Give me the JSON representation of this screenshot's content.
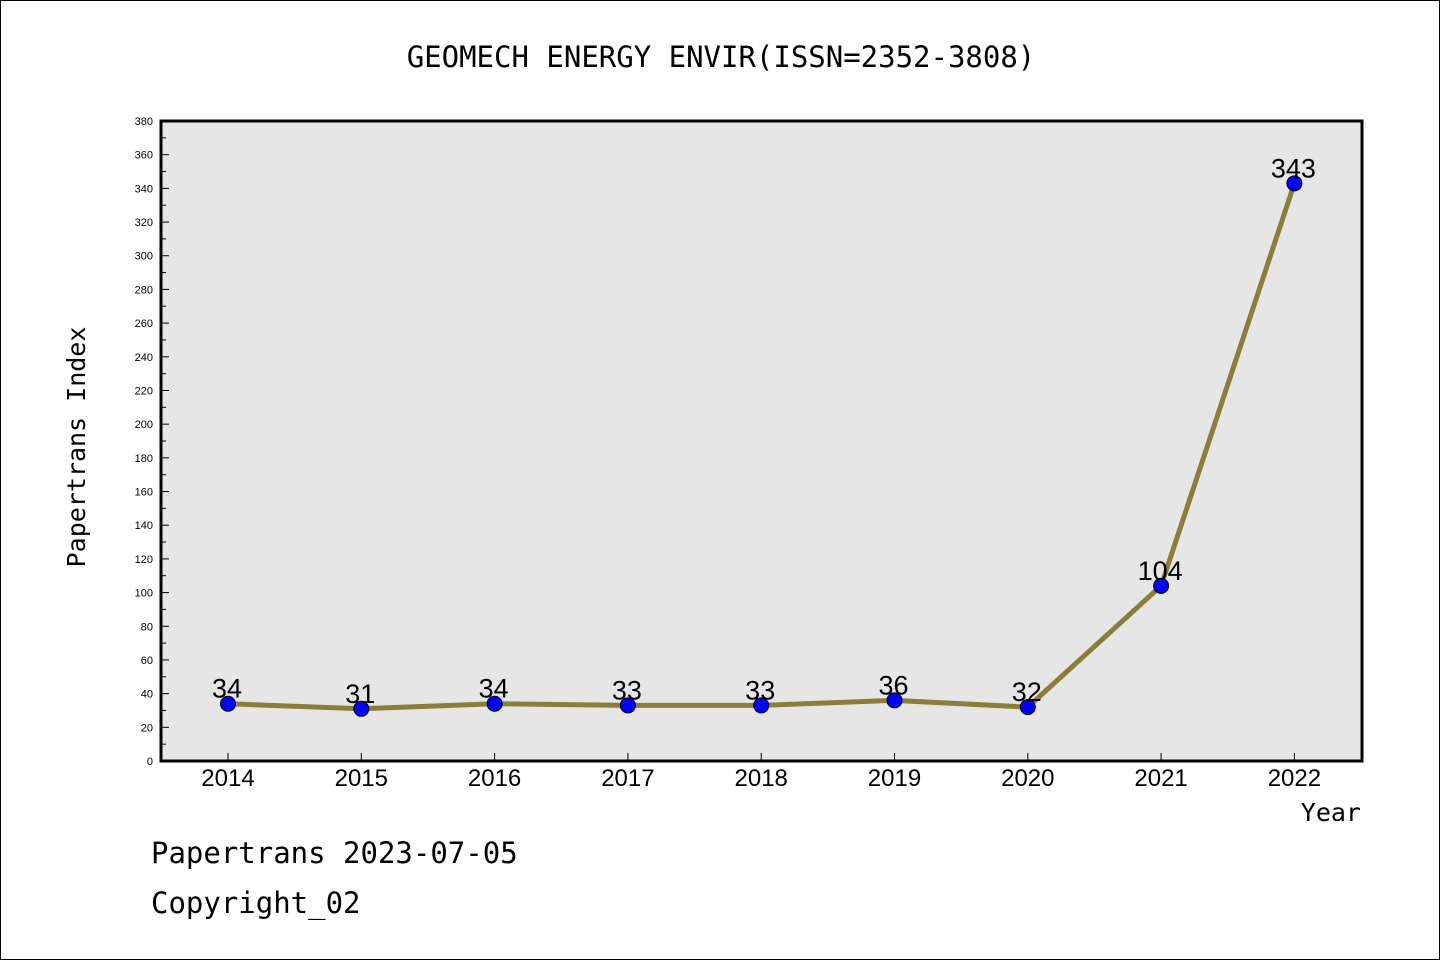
{
  "chart_data": {
    "type": "line",
    "title": "GEOMECH ENERGY ENVIR(ISSN=2352-3808)",
    "xlabel": "Year",
    "ylabel": "Papertrans Index",
    "categories": [
      "2014",
      "2015",
      "2016",
      "2017",
      "2018",
      "2019",
      "2020",
      "2021",
      "2022"
    ],
    "series": [
      {
        "values": [
          34,
          31,
          34,
          33,
          33,
          36,
          32,
          104,
          343
        ]
      }
    ],
    "data_labels": [
      "34",
      "31",
      "34",
      "33",
      "33",
      "36",
      "32",
      "104",
      "343"
    ],
    "ylim": [
      0,
      380
    ],
    "y_ticks": [
      "0",
      "20",
      "40",
      "60",
      "80",
      "100",
      "120",
      "140",
      "160",
      "180",
      "200",
      "220",
      "240",
      "260",
      "280",
      "300",
      "320",
      "340",
      "360",
      "380"
    ],
    "grid": false,
    "colors": {
      "plot_background": "#e6e6e6",
      "line": "#8b7d3a",
      "marker": "#0000ff"
    }
  },
  "footer": {
    "line1": "Papertrans 2023-07-05",
    "line2": "Copyright_02"
  }
}
